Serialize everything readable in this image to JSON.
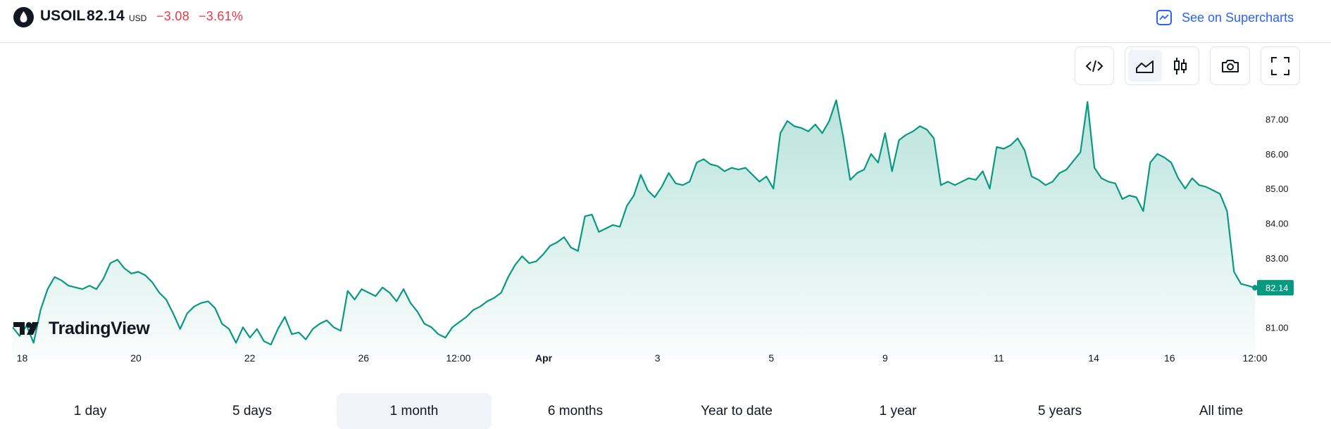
{
  "header": {
    "symbol": "USOIL",
    "price": "82.14",
    "currency": "USD",
    "change": "−3.08",
    "change_pct": "−3.61%",
    "supercharts_label": "See on Supercharts",
    "logo_icon": "oil-drop-icon",
    "supercharts_icon": "line-chart-icon"
  },
  "toolbar": {
    "buttons": [
      "embed-code-icon",
      "area-chart-icon",
      "candlestick-icon",
      "camera-icon",
      "fullscreen-icon"
    ],
    "active": "area-chart-icon"
  },
  "watermark": {
    "text": "TradingView"
  },
  "colors": {
    "line": "#089981",
    "negative": "#f23645",
    "link": "#2962ff",
    "price_tag": "#089981"
  },
  "ranges": {
    "tabs": [
      "1 day",
      "5 days",
      "1 month",
      "6 months",
      "Year to date",
      "1 year",
      "5 years",
      "All time"
    ],
    "active_index": 2
  },
  "chart_data": {
    "type": "area",
    "title": "",
    "xlabel": "",
    "ylabel": "",
    "x_ticks": [
      "18",
      "20",
      "22",
      "26",
      "12:00",
      "Apr",
      "3",
      "5",
      "9",
      "11",
      "14",
      "16",
      "12:00"
    ],
    "y_ticks": [
      "87.00",
      "86.00",
      "85.00",
      "84.00",
      "83.00",
      "81.00"
    ],
    "ylim": [
      80.5,
      87.6
    ],
    "last_price": "82.14",
    "grid": false,
    "legend": "none",
    "series": [
      {
        "values": [
          81.0,
          80.75,
          81.05,
          80.55,
          81.5,
          82.1,
          82.45,
          82.35,
          82.2,
          82.15,
          82.1,
          82.2,
          82.1,
          82.4,
          82.85,
          82.95,
          82.7,
          82.55,
          82.6,
          82.5,
          82.3,
          82.0,
          81.8,
          81.4,
          80.95,
          81.4,
          81.6,
          81.7,
          81.75,
          81.55,
          81.1,
          80.95,
          80.55,
          81.0,
          80.7,
          80.95,
          80.6,
          80.5,
          80.95,
          81.3,
          80.8,
          80.85,
          80.65,
          80.95,
          81.1,
          81.2,
          81.0,
          80.9,
          82.05,
          81.8,
          82.1,
          82.0,
          81.9,
          82.15,
          82.0,
          81.75,
          82.1,
          81.7,
          81.45,
          81.1,
          81.0,
          80.8,
          80.7,
          81.0,
          81.15,
          81.3,
          81.5,
          81.6,
          81.75,
          81.85,
          82.0,
          82.45,
          82.8,
          83.05,
          82.85,
          82.9,
          83.1,
          83.35,
          83.45,
          83.6,
          83.3,
          83.2,
          84.2,
          84.25,
          83.75,
          83.85,
          83.95,
          83.9,
          84.5,
          84.8,
          85.4,
          84.95,
          84.75,
          85.05,
          85.45,
          85.15,
          85.1,
          85.2,
          85.75,
          85.85,
          85.7,
          85.65,
          85.5,
          85.6,
          85.55,
          85.6,
          85.4,
          85.2,
          85.35,
          85.0,
          86.6,
          86.95,
          86.8,
          86.75,
          86.65,
          86.85,
          86.6,
          86.95,
          87.55,
          86.5,
          85.25,
          85.45,
          85.55,
          86.0,
          85.75,
          86.6,
          85.5,
          86.4,
          86.55,
          86.65,
          86.8,
          86.7,
          86.45,
          85.1,
          85.2,
          85.1,
          85.2,
          85.3,
          85.25,
          85.5,
          85.0,
          86.2,
          86.15,
          86.25,
          86.45,
          86.1,
          85.35,
          85.25,
          85.1,
          85.2,
          85.45,
          85.55,
          85.8,
          86.05,
          87.5,
          85.6,
          85.3,
          85.2,
          85.15,
          84.7,
          84.8,
          84.75,
          84.35,
          85.75,
          86.0,
          85.9,
          85.75,
          85.3,
          85.0,
          85.3,
          85.1,
          85.05,
          84.95,
          84.85,
          84.35,
          82.6,
          82.25,
          82.2,
          82.14
        ]
      }
    ]
  }
}
